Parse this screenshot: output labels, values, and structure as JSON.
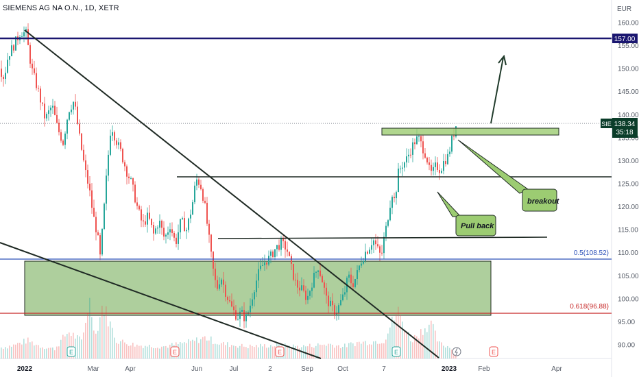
{
  "header": {
    "symbol": "SIEMENS AG NA O.N., 1D, XETR"
  },
  "currency": "EUR",
  "chart_data": {
    "type": "candlestick",
    "symbol_label": "SIE",
    "ylim": [
      86,
      164
    ],
    "y_ticks": [
      "160.00",
      "155.00",
      "150.00",
      "145.00",
      "140.00",
      "135.00",
      "130.00",
      "125.00",
      "120.00",
      "115.00",
      "110.00",
      "105.00",
      "100.00",
      "95.00",
      "90.00"
    ],
    "x_ticks": [
      "2022",
      "Mar",
      "Apr",
      "Jun",
      "Jul",
      "2",
      "Sep",
      "Oct",
      "7",
      "2023",
      "Feb",
      "Apr"
    ],
    "last_price": {
      "value": 138.34,
      "label": "138.34",
      "countdown": "35:18"
    },
    "level_157": {
      "value": 157.0,
      "label": "157.00"
    },
    "fib_levels": [
      {
        "label": "0.5(108.52)",
        "value": 108.52,
        "color": "#2a4fb8"
      },
      {
        "label": "0.618(96.88)",
        "value": 96.88,
        "color": "#c62828"
      }
    ],
    "price_path": [
      [
        0,
        150
      ],
      [
        6,
        148
      ],
      [
        12,
        153
      ],
      [
        20,
        155
      ],
      [
        30,
        158
      ],
      [
        38,
        157.6
      ],
      [
        46,
        150
      ],
      [
        56,
        145
      ],
      [
        66,
        139
      ],
      [
        76,
        142
      ],
      [
        84,
        137
      ],
      [
        92,
        134
      ],
      [
        100,
        141
      ],
      [
        108,
        143
      ],
      [
        116,
        135
      ],
      [
        124,
        128
      ],
      [
        130,
        124
      ],
      [
        136,
        118
      ],
      [
        142,
        114
      ],
      [
        146,
        109
      ],
      [
        150,
        116
      ],
      [
        156,
        128
      ],
      [
        162,
        138
      ],
      [
        168,
        135
      ],
      [
        176,
        132
      ],
      [
        184,
        128
      ],
      [
        192,
        125
      ],
      [
        200,
        120
      ],
      [
        208,
        116
      ],
      [
        216,
        118
      ],
      [
        224,
        114
      ],
      [
        232,
        117
      ],
      [
        240,
        113
      ],
      [
        248,
        116
      ],
      [
        256,
        112
      ],
      [
        264,
        117
      ],
      [
        272,
        115
      ],
      [
        280,
        120
      ],
      [
        286,
        126
      ],
      [
        292,
        125
      ],
      [
        298,
        121
      ],
      [
        304,
        114
      ],
      [
        310,
        107
      ],
      [
        316,
        102
      ],
      [
        322,
        105
      ],
      [
        330,
        101
      ],
      [
        338,
        98
      ],
      [
        346,
        96
      ],
      [
        352,
        97
      ],
      [
        358,
        95.5
      ],
      [
        364,
        98
      ],
      [
        370,
        102
      ],
      [
        378,
        106
      ],
      [
        386,
        108
      ],
      [
        394,
        109
      ],
      [
        402,
        111
      ],
      [
        410,
        112
      ],
      [
        418,
        111
      ],
      [
        426,
        106
      ],
      [
        432,
        103
      ],
      [
        440,
        102
      ],
      [
        448,
        100
      ],
      [
        456,
        104
      ],
      [
        464,
        107
      ],
      [
        470,
        104
      ],
      [
        476,
        100
      ],
      [
        484,
        98
      ],
      [
        490,
        97
      ],
      [
        496,
        99
      ],
      [
        502,
        101
      ],
      [
        508,
        105
      ],
      [
        514,
        103
      ],
      [
        520,
        105
      ],
      [
        526,
        108
      ],
      [
        532,
        110
      ],
      [
        538,
        111
      ],
      [
        544,
        113
      ],
      [
        550,
        111
      ],
      [
        556,
        109
      ],
      [
        560,
        113
      ],
      [
        564,
        116
      ],
      [
        568,
        120
      ],
      [
        572,
        123
      ],
      [
        576,
        121
      ],
      [
        580,
        127
      ],
      [
        586,
        129
      ],
      [
        592,
        130
      ],
      [
        598,
        132
      ],
      [
        604,
        134
      ],
      [
        610,
        135
      ],
      [
        616,
        133
      ],
      [
        622,
        131
      ],
      [
        626,
        128
      ],
      [
        630,
        127
      ],
      [
        636,
        129
      ],
      [
        642,
        128
      ],
      [
        648,
        130
      ],
      [
        654,
        131
      ],
      [
        658,
        134
      ],
      [
        662,
        136
      ],
      [
        666,
        138.3
      ]
    ],
    "volume_path": [
      [
        0,
        0.18
      ],
      [
        20,
        0.22
      ],
      [
        40,
        0.3
      ],
      [
        60,
        0.2
      ],
      [
        80,
        0.16
      ],
      [
        100,
        0.45
      ],
      [
        120,
        0.28
      ],
      [
        130,
        1.0
      ],
      [
        140,
        0.4
      ],
      [
        150,
        0.9
      ],
      [
        170,
        0.3
      ],
      [
        200,
        0.22
      ],
      [
        240,
        0.2
      ],
      [
        280,
        0.28
      ],
      [
        300,
        0.35
      ],
      [
        320,
        0.25
      ],
      [
        360,
        0.2
      ],
      [
        400,
        0.22
      ],
      [
        440,
        0.2
      ],
      [
        480,
        0.24
      ],
      [
        500,
        0.2
      ],
      [
        520,
        0.26
      ],
      [
        560,
        0.3
      ],
      [
        580,
        0.8
      ],
      [
        600,
        0.3
      ],
      [
        628,
        0.6
      ],
      [
        640,
        0.25
      ],
      [
        666,
        0.15
      ]
    ],
    "annotations": {
      "breakout": "breakout",
      "pullback": "Pull back"
    },
    "event_markers": [
      "E",
      "E",
      "E",
      "E",
      "E",
      "E"
    ]
  },
  "colors": {
    "up": "#26a69a",
    "down": "#ef5350",
    "level_157": "#1a1670",
    "zone_fill": "#8fbc77",
    "annotation_box": "#9ccc72",
    "last_price_bg": "#0b3d2a"
  }
}
